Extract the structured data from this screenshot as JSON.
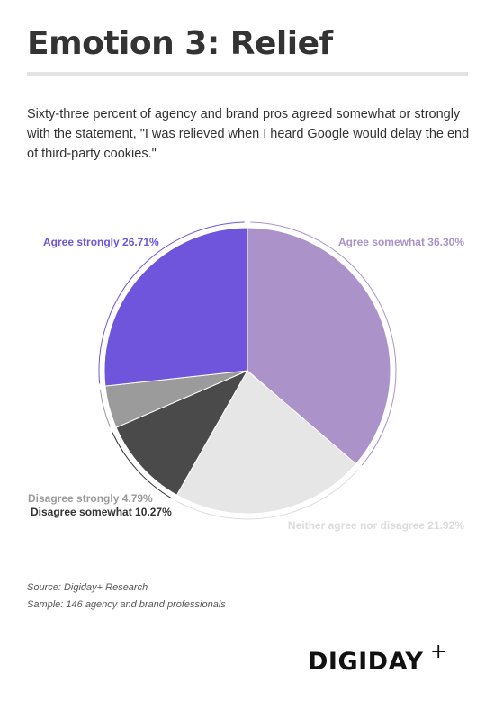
{
  "header": {
    "title": "Emotion 3: Relief",
    "subtitle": "Sixty-three percent of agency and brand pros agreed somewhat or strongly with the statement, \"I was relieved when I heard Google would delay the end of third-party cookies.\""
  },
  "chart_data": {
    "type": "pie",
    "title": "",
    "slices": [
      {
        "name": "Agree somewhat",
        "value": 36.3,
        "label": "Agree somewhat 36.30%",
        "color": "#ab92c9",
        "label_color": "#ab92c9"
      },
      {
        "name": "Neither agree nor disagree",
        "value": 21.92,
        "label": "Neither agree nor disagree 21.92%",
        "color": "#e6e6e6",
        "label_color": "#dcdcdc"
      },
      {
        "name": "Disagree somewhat",
        "value": 10.27,
        "label": "Disagree somewhat 10.27%",
        "color": "#4a4a4a",
        "label_color": "#333333"
      },
      {
        "name": "Disagree strongly",
        "value": 4.79,
        "label": "Disagree strongly 4.79%",
        "color": "#9b9b9b",
        "label_color": "#9a9a9a"
      },
      {
        "name": "Agree strongly",
        "value": 26.71,
        "label": "Agree strongly 26.71%",
        "color": "#6e55dc",
        "label_color": "#6e55dc"
      }
    ],
    "start_angle_deg": 0,
    "direction": "clockwise"
  },
  "footer": {
    "source": "Source: Digiday+ Research",
    "sample": "Sample: 146 agency and brand professionals"
  },
  "logo": {
    "text": "DIGIDAY",
    "plus": "+"
  }
}
